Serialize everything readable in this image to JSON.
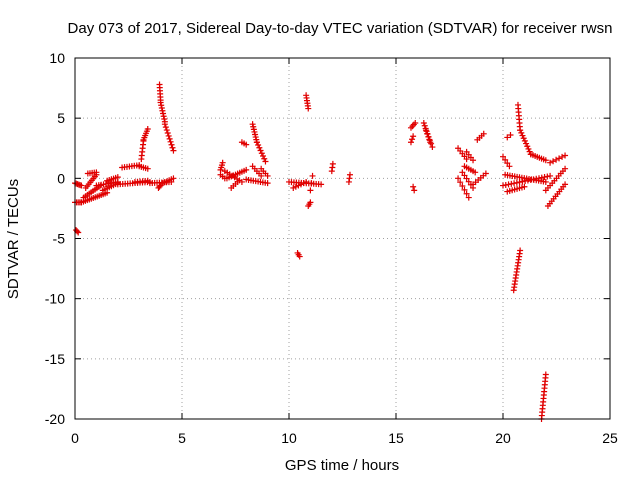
{
  "chart_data": {
    "type": "scatter",
    "title": "Day 073 of 2017, Sidereal Day-to-day VTEC variation (SDTVAR) for receiver rwsn",
    "xlabel": "GPS time / hours",
    "ylabel": "SDTVAR / TECUs",
    "xlim": [
      0,
      25
    ],
    "ylim": [
      -20,
      10
    ],
    "xticks": [
      0,
      5,
      10,
      15,
      20,
      25
    ],
    "yticks": [
      -20,
      -15,
      -10,
      -5,
      0,
      5,
      10
    ],
    "xtick_labels": [
      "0",
      "5",
      "10",
      "15",
      "20",
      "25"
    ],
    "ytick_labels": [
      "-20",
      "-15",
      "-10",
      "-5",
      "0",
      "5",
      "10"
    ],
    "grid": true,
    "marker": "plus",
    "color": "#e00000",
    "segments": [
      {
        "from": [
          0.0,
          -0.4
        ],
        "to": [
          0.3,
          -0.6
        ],
        "n": 6
      },
      {
        "from": [
          0.0,
          -2.0
        ],
        "to": [
          0.3,
          -2.0
        ],
        "n": 5
      },
      {
        "from": [
          0.05,
          -4.3
        ],
        "to": [
          0.15,
          -4.5
        ],
        "n": 3
      },
      {
        "from": [
          0.3,
          -2.0
        ],
        "to": [
          1.5,
          -1.2
        ],
        "n": 14
      },
      {
        "from": [
          0.4,
          -1.6
        ],
        "to": [
          1.2,
          -0.6
        ],
        "n": 10
      },
      {
        "from": [
          0.5,
          -0.8
        ],
        "to": [
          1.0,
          0.3
        ],
        "n": 8
      },
      {
        "from": [
          0.6,
          0.4
        ],
        "to": [
          1.0,
          0.5
        ],
        "n": 5
      },
      {
        "from": [
          1.0,
          -0.6
        ],
        "to": [
          2.0,
          -0.3
        ],
        "n": 10
      },
      {
        "from": [
          1.3,
          -1.0
        ],
        "to": [
          2.0,
          -0.4
        ],
        "n": 8
      },
      {
        "from": [
          1.5,
          -0.2
        ],
        "to": [
          2.0,
          0.1
        ],
        "n": 6
      },
      {
        "from": [
          2.0,
          -0.5
        ],
        "to": [
          3.5,
          -0.3
        ],
        "n": 14
      },
      {
        "from": [
          2.2,
          0.9
        ],
        "to": [
          3.0,
          1.1
        ],
        "n": 8
      },
      {
        "from": [
          3.0,
          1.0
        ],
        "to": [
          3.4,
          0.8
        ],
        "n": 5
      },
      {
        "from": [
          2.8,
          -0.3
        ],
        "to": [
          3.4,
          -0.2
        ],
        "n": 6
      },
      {
        "from": [
          3.1,
          1.6
        ],
        "to": [
          3.2,
          3.1
        ],
        "n": 6
      },
      {
        "from": [
          3.2,
          3.2
        ],
        "to": [
          3.4,
          4.1
        ],
        "n": 6
      },
      {
        "from": [
          3.5,
          -0.4
        ],
        "to": [
          4.5,
          -0.3
        ],
        "n": 10
      },
      {
        "from": [
          3.9,
          -0.8
        ],
        "to": [
          4.0,
          -0.6
        ],
        "n": 3
      },
      {
        "from": [
          3.95,
          7.8
        ],
        "to": [
          4.0,
          6.5
        ],
        "n": 6
      },
      {
        "from": [
          4.0,
          6.3
        ],
        "to": [
          4.2,
          4.7
        ],
        "n": 8
      },
      {
        "from": [
          4.2,
          4.5
        ],
        "to": [
          4.6,
          2.3
        ],
        "n": 10
      },
      {
        "from": [
          4.1,
          -0.4
        ],
        "to": [
          4.6,
          0.0
        ],
        "n": 6
      },
      {
        "from": [
          6.8,
          0.7
        ],
        "to": [
          6.9,
          1.3
        ],
        "n": 4
      },
      {
        "from": [
          6.8,
          0.3
        ],
        "to": [
          7.0,
          0.0
        ],
        "n": 3
      },
      {
        "from": [
          7.1,
          0.0
        ],
        "to": [
          8.0,
          0.7
        ],
        "n": 10
      },
      {
        "from": [
          7.0,
          0.6
        ],
        "to": [
          7.8,
          -0.3
        ],
        "n": 8
      },
      {
        "from": [
          7.3,
          -0.8
        ],
        "to": [
          7.6,
          -0.3
        ],
        "n": 4
      },
      {
        "from": [
          7.8,
          3.0
        ],
        "to": [
          8.0,
          2.8
        ],
        "n": 3
      },
      {
        "from": [
          8.0,
          -0.1
        ],
        "to": [
          9.0,
          -0.4
        ],
        "n": 10
      },
      {
        "from": [
          8.3,
          4.5
        ],
        "to": [
          8.5,
          3.0
        ],
        "n": 8
      },
      {
        "from": [
          8.5,
          3.0
        ],
        "to": [
          8.9,
          1.4
        ],
        "n": 8
      },
      {
        "from": [
          8.3,
          1.0
        ],
        "to": [
          8.7,
          0.2
        ],
        "n": 5
      },
      {
        "from": [
          8.7,
          0.8
        ],
        "to": [
          9.0,
          0.2
        ],
        "n": 4
      },
      {
        "from": [
          10.0,
          -0.3
        ],
        "to": [
          11.5,
          -0.5
        ],
        "n": 14
      },
      {
        "from": [
          10.2,
          -0.8
        ],
        "to": [
          10.8,
          -0.3
        ],
        "n": 6
      },
      {
        "from": [
          10.4,
          -6.2
        ],
        "to": [
          10.5,
          -6.5
        ],
        "n": 3
      },
      {
        "from": [
          10.8,
          6.9
        ],
        "to": [
          10.9,
          5.8
        ],
        "n": 6
      },
      {
        "from": [
          10.9,
          -2.3
        ],
        "to": [
          11.0,
          -2.0
        ],
        "n": 3
      },
      {
        "from": [
          11.0,
          -1.0
        ],
        "to": [
          11.1,
          0.2
        ],
        "n": 3
      },
      {
        "from": [
          12.0,
          0.6
        ],
        "to": [
          12.05,
          1.2
        ],
        "n": 3
      },
      {
        "from": [
          12.8,
          -0.3
        ],
        "to": [
          12.85,
          0.3
        ],
        "n": 3
      },
      {
        "from": [
          15.7,
          3.0
        ],
        "to": [
          15.8,
          3.5
        ],
        "n": 3
      },
      {
        "from": [
          15.7,
          4.2
        ],
        "to": [
          15.9,
          4.6
        ],
        "n": 4
      },
      {
        "from": [
          15.8,
          -0.7
        ],
        "to": [
          15.85,
          -1.0
        ],
        "n": 2
      },
      {
        "from": [
          16.3,
          4.6
        ],
        "to": [
          16.6,
          3.0
        ],
        "n": 8
      },
      {
        "from": [
          16.4,
          4.0
        ],
        "to": [
          16.7,
          2.6
        ],
        "n": 6
      },
      {
        "from": [
          17.9,
          2.5
        ],
        "to": [
          18.3,
          1.6
        ],
        "n": 5
      },
      {
        "from": [
          17.9,
          0.0
        ],
        "to": [
          18.4,
          -1.6
        ],
        "n": 6
      },
      {
        "from": [
          18.2,
          1.0
        ],
        "to": [
          18.7,
          0.5
        ],
        "n": 6
      },
      {
        "from": [
          18.1,
          0.5
        ],
        "to": [
          18.6,
          -0.8
        ],
        "n": 6
      },
      {
        "from": [
          18.6,
          -0.5
        ],
        "to": [
          19.2,
          0.4
        ],
        "n": 6
      },
      {
        "from": [
          18.3,
          2.2
        ],
        "to": [
          18.6,
          1.5
        ],
        "n": 4
      },
      {
        "from": [
          18.8,
          3.2
        ],
        "to": [
          19.1,
          3.7
        ],
        "n": 4
      },
      {
        "from": [
          20.0,
          1.8
        ],
        "to": [
          20.3,
          1.0
        ],
        "n": 4
      },
      {
        "from": [
          20.2,
          3.4
        ],
        "to": [
          20.35,
          3.6
        ],
        "n": 2
      },
      {
        "from": [
          20.1,
          0.3
        ],
        "to": [
          22.0,
          -0.3
        ],
        "n": 18
      },
      {
        "from": [
          20.0,
          -0.6
        ],
        "to": [
          22.2,
          0.2
        ],
        "n": 18
      },
      {
        "from": [
          20.2,
          -1.1
        ],
        "to": [
          21.0,
          -0.7
        ],
        "n": 8
      },
      {
        "from": [
          20.7,
          6.1
        ],
        "to": [
          20.8,
          4.0
        ],
        "n": 8
      },
      {
        "from": [
          20.8,
          4.0
        ],
        "to": [
          21.3,
          2.0
        ],
        "n": 10
      },
      {
        "from": [
          21.3,
          2.0
        ],
        "to": [
          22.0,
          1.5
        ],
        "n": 8
      },
      {
        "from": [
          20.5,
          -9.3
        ],
        "to": [
          20.8,
          -6.0
        ],
        "n": 14
      },
      {
        "from": [
          22.0,
          -1.0
        ],
        "to": [
          22.9,
          0.8
        ],
        "n": 10
      },
      {
        "from": [
          22.1,
          -2.3
        ],
        "to": [
          22.9,
          -0.5
        ],
        "n": 10
      },
      {
        "from": [
          22.2,
          1.3
        ],
        "to": [
          22.9,
          1.9
        ],
        "n": 6
      },
      {
        "from": [
          21.8,
          -20.0
        ],
        "to": [
          22.0,
          -16.3
        ],
        "n": 14
      }
    ]
  }
}
